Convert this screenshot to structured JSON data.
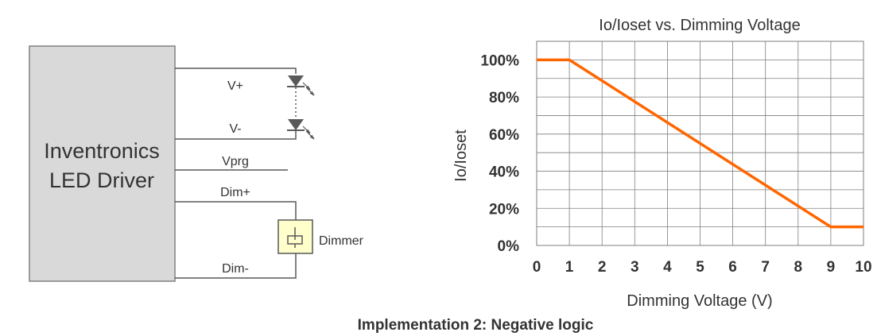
{
  "circuit": {
    "driver_line1": "Inventronics",
    "driver_line2": "LED Driver",
    "pin_vplus": "V+",
    "pin_vminus": "V-",
    "pin_vprg": "Vprg",
    "pin_dimplus": "Dim+",
    "pin_dimminus": "Dim-",
    "dimmer_label": "Dimmer",
    "colors": {
      "driver_fill": "#d9d9d9",
      "dimmer_fill": "#ffffcc",
      "wire": "#595959"
    }
  },
  "caption": "Implementation 2: Negative logic",
  "chart_data": {
    "type": "line",
    "title": "Io/Ioset vs. Dimming Voltage",
    "xlabel": "Dimming Voltage (V)",
    "ylabel": "Io/Ioset",
    "x_ticks": [
      "0",
      "1",
      "2",
      "3",
      "4",
      "5",
      "6",
      "7",
      "8",
      "9",
      "10"
    ],
    "y_ticks": [
      "0%",
      "20%",
      "40%",
      "60%",
      "80%",
      "100%"
    ],
    "xlim": [
      0,
      10
    ],
    "ylim": [
      0,
      110
    ],
    "grid": true,
    "series": [
      {
        "x": [
          0,
          1,
          9,
          10
        ],
        "y": [
          100,
          100,
          10,
          10
        ],
        "color": "#ff6600"
      }
    ]
  }
}
